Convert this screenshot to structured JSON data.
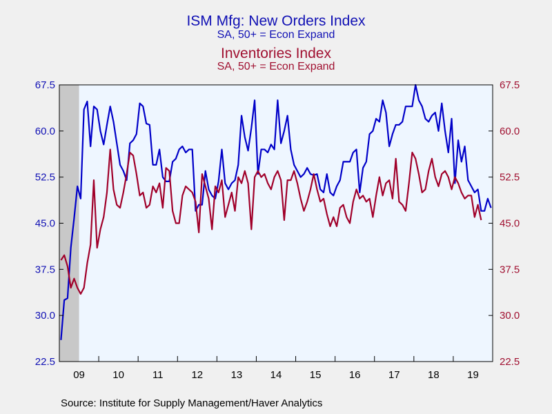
{
  "titles": {
    "title1": "ISM Mfg: New Orders Index",
    "subtitle1": "SA, 50+ = Econ Expand",
    "title2": "Inventories Index",
    "subtitle2": "SA, 50+ = Econ Expand"
  },
  "source": "Source:  Institute for Supply Management/Haver Analytics",
  "colors": {
    "new_orders": "#0000c8",
    "inventories": "#a0002a",
    "plot_bg": "#eef6ff",
    "recession": "#c8c8c8",
    "left_axis_text": "#1010b4",
    "right_axis_text": "#a01030"
  },
  "chart_data": {
    "type": "line",
    "x_tick_labels": [
      "09",
      "10",
      "11",
      "12",
      "13",
      "14",
      "15",
      "16",
      "17",
      "18",
      "19"
    ],
    "x_range": [
      "2009-01",
      "2019-12"
    ],
    "y_left_range": [
      22.5,
      67.5
    ],
    "y_right_range": [
      22.5,
      67.5
    ],
    "y_left_ticks": [
      "67.5",
      "60.0",
      "52.5",
      "45.0",
      "37.5",
      "30.0",
      "22.5"
    ],
    "y_right_ticks": [
      "67.5",
      "60.0",
      "52.5",
      "45.0",
      "37.5",
      "30.0",
      "22.5"
    ],
    "recession": {
      "start": "2009-01",
      "end": "2009-06"
    },
    "grid": false,
    "series": [
      {
        "name": "ISM Mfg: New Orders Index",
        "axis": "left",
        "start": "2009-01",
        "values": [
          26.0,
          32.5,
          32.8,
          41.0,
          45.8,
          51.0,
          49.0,
          63.5,
          64.8,
          57.5,
          64.0,
          63.5,
          60.0,
          57.8,
          61.0,
          64.0,
          61.5,
          58.0,
          54.5,
          53.5,
          52.0,
          58.0,
          58.5,
          59.5,
          64.5,
          64.0,
          61.2,
          61.0,
          54.5,
          54.5,
          57.0,
          52.5,
          51.8,
          51.8,
          55.0,
          55.5,
          57.0,
          57.5,
          56.5,
          57.0,
          57.0,
          47.0,
          48.0,
          48.0,
          53.5,
          50.5,
          49.5,
          49.0,
          51.8,
          57.0,
          51.5,
          50.5,
          51.5,
          52.0,
          54.5,
          62.5,
          59.0,
          56.8,
          60.5,
          65.0,
          53.0,
          57.0,
          57.0,
          56.5,
          57.8,
          57.0,
          65.0,
          58.0,
          60.0,
          62.5,
          57.0,
          54.5,
          53.5,
          52.5,
          53.0,
          54.0,
          53.0,
          52.8,
          53.0,
          50.5,
          50.0,
          53.0,
          50.0,
          49.5,
          51.0,
          52.0,
          55.0,
          55.0,
          55.0,
          56.5,
          57.0,
          50.0,
          54.0,
          55.0,
          59.5,
          60.0,
          62.0,
          61.5,
          65.0,
          63.0,
          57.5,
          59.5,
          61.0,
          61.0,
          61.5,
          64.0,
          64.0,
          64.0,
          67.5,
          65.0,
          64.0,
          62.0,
          61.5,
          62.5,
          63.0,
          60.0,
          64.5,
          60.0,
          56.5,
          62.0,
          51.5,
          58.5,
          55.0,
          57.5,
          52.0,
          51.0,
          50.0,
          50.5,
          47.0,
          47.0,
          49.0,
          47.5
        ]
      },
      {
        "name": "Inventories Index",
        "axis": "right",
        "start": "2009-01",
        "values": [
          39.0,
          39.8,
          38.0,
          34.5,
          36.0,
          34.5,
          33.5,
          34.5,
          38.5,
          41.5,
          52.0,
          41.0,
          44.0,
          46.0,
          50.0,
          57.0,
          50.5,
          48.0,
          47.5,
          50.0,
          53.0,
          56.5,
          56.0,
          53.0,
          49.5,
          50.0,
          47.5,
          48.0,
          51.0,
          50.0,
          51.5,
          47.5,
          54.0,
          53.5,
          47.0,
          45.0,
          45.0,
          49.5,
          51.0,
          50.5,
          50.0,
          48.5,
          43.5,
          53.0,
          51.0,
          49.0,
          44.0,
          51.0,
          50.0,
          52.0,
          46.0,
          48.0,
          50.0,
          47.0,
          52.5,
          51.5,
          53.5,
          51.5,
          44.0,
          52.5,
          53.5,
          52.5,
          53.0,
          51.5,
          50.5,
          52.5,
          53.5,
          52.0,
          45.5,
          52.0,
          52.0,
          53.5,
          51.5,
          49.0,
          47.0,
          48.5,
          50.5,
          53.0,
          50.5,
          48.5,
          49.0,
          46.5,
          44.5,
          46.0,
          44.5,
          47.5,
          48.0,
          46.0,
          45.0,
          48.5,
          50.5,
          49.0,
          49.5,
          48.5,
          49.0,
          46.0,
          49.5,
          52.5,
          49.5,
          51.5,
          52.0,
          49.0,
          55.5,
          48.5,
          48.0,
          47.0,
          51.5,
          56.5,
          55.5,
          53.0,
          50.0,
          50.5,
          53.5,
          55.5,
          52.5,
          51.0,
          53.0,
          53.5,
          52.5,
          50.5,
          52.5,
          51.5,
          50.0,
          49.0,
          49.5,
          49.5,
          46.0,
          48.0,
          45.5
        ]
      }
    ]
  }
}
